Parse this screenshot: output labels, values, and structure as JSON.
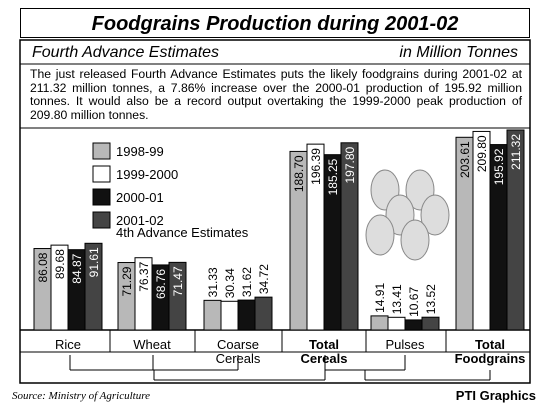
{
  "chart_data": {
    "type": "bar",
    "title": "Foodgrains Production during 2001-02",
    "subtitle": "Fourth Advance Estimates",
    "unit": "in Million Tonnes",
    "description": "The just released Fourth Advance Estimates puts the likely foodgrains during 2001-02 at 211.32 million tonnes, a 7.86% increase over the 2000-01 production of 195.92 million tonnes. It would also be a record output overtaking the 1999-2000 peak production of 209.80 million tonnes.",
    "categories": [
      "Rice",
      "Wheat",
      "Coarse Cereals",
      "Total Cereals",
      "Pulses",
      "Total Foodgrains"
    ],
    "series": [
      {
        "name": "1998-99",
        "color": "#b8b8b8",
        "values": [
          86.08,
          71.29,
          31.33,
          188.7,
          14.91,
          203.61
        ],
        "value_labels": [
          "86.08",
          "71.29",
          "31.33",
          "188.70",
          "14.91",
          "203.61"
        ]
      },
      {
        "name": "1999-2000",
        "color": "#ffffff",
        "values": [
          89.68,
          76.37,
          30.34,
          196.39,
          13.41,
          209.8
        ],
        "value_labels": [
          "89.68",
          "76.37",
          "30.34",
          "196.39",
          "13.41",
          "209.80"
        ]
      },
      {
        "name": "2000-01",
        "color": "#111111",
        "values": [
          84.87,
          68.76,
          31.62,
          185.25,
          10.67,
          195.92
        ],
        "value_labels": [
          "84.87",
          "68.76",
          "31.62",
          "185.25",
          "10.67",
          "195.92"
        ]
      },
      {
        "name": "2001-02",
        "color": "#444444",
        "values": [
          91.61,
          71.47,
          34.72,
          197.8,
          13.52,
          211.32
        ],
        "value_labels": [
          "91.61",
          "71.47",
          "34.72",
          "197.80",
          "13.52",
          "211.32"
        ]
      }
    ],
    "legend_note": "4th Advance Estimates",
    "source": "Source: Ministry of Agriculture",
    "credit": "PTI Graphics"
  }
}
